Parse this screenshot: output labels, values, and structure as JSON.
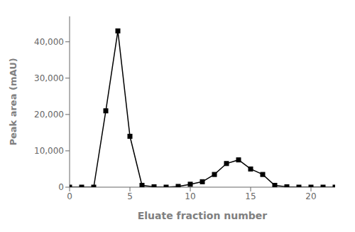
{
  "chart_data": {
    "type": "line",
    "x": [
      0,
      1,
      2,
      3,
      4,
      5,
      6,
      7,
      8,
      9,
      10,
      11,
      12,
      13,
      14,
      15,
      16,
      17,
      18,
      19,
      20,
      21,
      22
    ],
    "values": [
      0,
      0,
      0,
      21000,
      43000,
      14000,
      500,
      100,
      0,
      200,
      800,
      1500,
      3500,
      6500,
      7500,
      5000,
      3500,
      500,
      100,
      0,
      0,
      0,
      0
    ],
    "xlabel": "Eluate fraction number",
    "ylabel": "Peak area (mAU)",
    "xlim": [
      0,
      22
    ],
    "ylim": [
      0,
      47000
    ],
    "xticks": [
      0,
      5,
      10,
      15,
      20
    ],
    "yticks": [
      0,
      {
        "value": 10000,
        "label": "10,000"
      },
      {
        "value": 20000,
        "label": "20,000"
      },
      {
        "value": 30000,
        "label": "30,000"
      },
      {
        "value": 40000,
        "label": "40,000"
      }
    ],
    "color": "#000000",
    "marker": "square"
  }
}
